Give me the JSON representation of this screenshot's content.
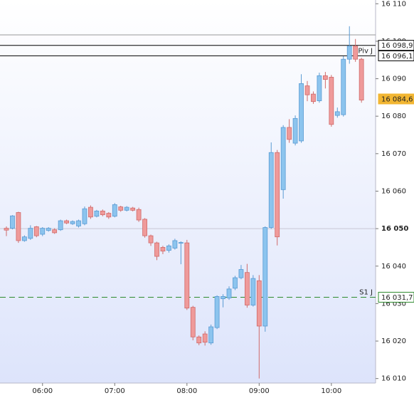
{
  "chart_data": {
    "type": "candlestick",
    "categories": [
      null,
      null,
      null,
      null,
      null,
      null,
      "06:00",
      null,
      null,
      null,
      null,
      null,
      null,
      null,
      null,
      null,
      null,
      null,
      "07:00",
      null,
      null,
      null,
      null,
      null,
      null,
      null,
      null,
      null,
      null,
      null,
      "08:00",
      null,
      null,
      null,
      null,
      null,
      null,
      null,
      null,
      null,
      null,
      null,
      "09:00",
      null,
      null,
      null,
      null,
      null,
      null,
      null,
      null,
      null,
      null,
      null,
      "10:00",
      null,
      null,
      null,
      null,
      null
    ],
    "open": [
      16050.1,
      16050.1,
      16054.3,
      16046.8,
      16047.4,
      16050.5,
      16048.5,
      16049.5,
      16049.7,
      16049.7,
      16052.1,
      16051.3,
      16050.7,
      16051.3,
      16055.7,
      16053.3,
      16054.7,
      16054.1,
      16053.3,
      16055.8,
      16054.9,
      16055.5,
      16055.1,
      16052.5,
      16048.1,
      16046.2,
      16045.0,
      16044.2,
      16044.8,
      16046.1,
      16046.2,
      16029.0,
      16021.1,
      16021.9,
      16019.5,
      16023.6,
      16031.3,
      16031.5,
      16034.1,
      16036.9,
      16038.3,
      16029.6,
      16036.1,
      16024.0,
      16050.3,
      16070.3,
      16060.4,
      16077.0,
      16072.8,
      16073.4,
      16088.1,
      16085.9,
      16084.1,
      16090.8,
      16090.4,
      16080.2,
      16080.4,
      16095.2,
      16098.7,
      16095.2
    ],
    "high": [
      16050.6,
      16053.6,
      16054.5,
      16048.2,
      16050.9,
      16050.7,
      16050.4,
      16050.4,
      16050.1,
      16052.4,
      16052.4,
      16052.2,
      16052.4,
      16055.9,
      16056.2,
      16055.0,
      16055.1,
      16054.4,
      16056.8,
      16056.1,
      16056.0,
      16055.8,
      16055.6,
      16052.8,
      16048.4,
      16046.5,
      16045.4,
      16045.8,
      16047.3,
      16046.6,
      16047.0,
      16029.4,
      16021.5,
      16022.6,
      16024.4,
      16032.2,
      16032.5,
      16034.6,
      16037.4,
      16040.3,
      16040.6,
      16037.6,
      16037.6,
      16050.6,
      16073.0,
      16071.0,
      16077.6,
      16079.2,
      16080.2,
      16091.2,
      16089.4,
      16086.6,
      16091.6,
      16091.8,
      16091.0,
      16082.3,
      16096.0,
      16104.0,
      16100.6,
      16095.6
    ],
    "low": [
      16048.0,
      16049.8,
      16046.2,
      16046.5,
      16047.0,
      16047.7,
      16048.0,
      16049.2,
      16048.6,
      16049.4,
      16051.2,
      16051.0,
      16050.3,
      16050.9,
      16052.6,
      16053.0,
      16053.3,
      16052.6,
      16053.0,
      16054.5,
      16054.6,
      16054.6,
      16051.8,
      16047.6,
      16045.4,
      16041.6,
      16043.2,
      16043.6,
      16044.4,
      16040.5,
      16028.3,
      16020.2,
      16018.9,
      16018.8,
      16019.0,
      16023.2,
      16029.0,
      16031.0,
      16033.6,
      16036.5,
      16028.9,
      16029.2,
      16010.0,
      16022.5,
      16049.9,
      16045.5,
      16058.0,
      16072.9,
      16072.2,
      16072.9,
      16084.0,
      16083.3,
      16083.6,
      16087.4,
      16077.2,
      16079.6,
      16079.9,
      16094.0,
      16094.5,
      16083.6
    ],
    "close": [
      16049.6,
      16053.4,
      16046.8,
      16047.8,
      16050.1,
      16048.1,
      16050.1,
      16050.1,
      16048.9,
      16052.1,
      16051.5,
      16051.9,
      16052.1,
      16055.3,
      16053.1,
      16054.7,
      16053.7,
      16053.1,
      16056.4,
      16054.9,
      16055.7,
      16054.9,
      16052.3,
      16048.1,
      16046.2,
      16042.6,
      16044.0,
      16045.4,
      16046.8,
      16046.3,
      16028.8,
      16021.1,
      16019.5,
      16019.7,
      16023.8,
      16031.9,
      16031.9,
      16033.9,
      16036.9,
      16039.1,
      16029.6,
      16036.7,
      16024.0,
      16050.3,
      16070.3,
      16047.8,
      16077.0,
      16073.8,
      16079.4,
      16088.7,
      16085.7,
      16083.9,
      16090.8,
      16089.8,
      16077.8,
      16081.2,
      16095.2,
      16098.7,
      16095.2,
      16084.3
    ],
    "up_color": "#8cc4ee",
    "down_color": "#ef9a9a",
    "ylim": [
      16008.8,
      16111
    ],
    "yticks": [
      {
        "value": 16010,
        "label": "16 010"
      },
      {
        "value": 16020,
        "label": "16 020"
      },
      {
        "value": 16030,
        "label": "16 030"
      },
      {
        "value": 16040,
        "label": "16 040"
      },
      {
        "value": 16050,
        "label": "16 050"
      },
      {
        "value": 16060,
        "label": "16 060"
      },
      {
        "value": 16070,
        "label": "16 070"
      },
      {
        "value": 16080,
        "label": "16 080"
      },
      {
        "value": 16090,
        "label": "16 090"
      },
      {
        "value": 16100,
        "label": "16 100"
      },
      {
        "value": 16110,
        "label": "16 110"
      }
    ],
    "highlight_tick": 16050,
    "levels": [
      {
        "value": 16101.7,
        "color": "#999999"
      },
      {
        "value": 16098.9,
        "label": "16 098,9",
        "color": "#000000"
      },
      {
        "value": 16096.1,
        "label": "16 096,1",
        "name": "Piv J",
        "color": "#000000"
      },
      {
        "value": 16031.7,
        "label": "16 031,7",
        "name": "S1 J",
        "color": "#2e8b2e",
        "dashed": true
      },
      {
        "value": 16084.6,
        "label": "16 084,6",
        "color": "#f2b632",
        "marker": true
      }
    ]
  }
}
